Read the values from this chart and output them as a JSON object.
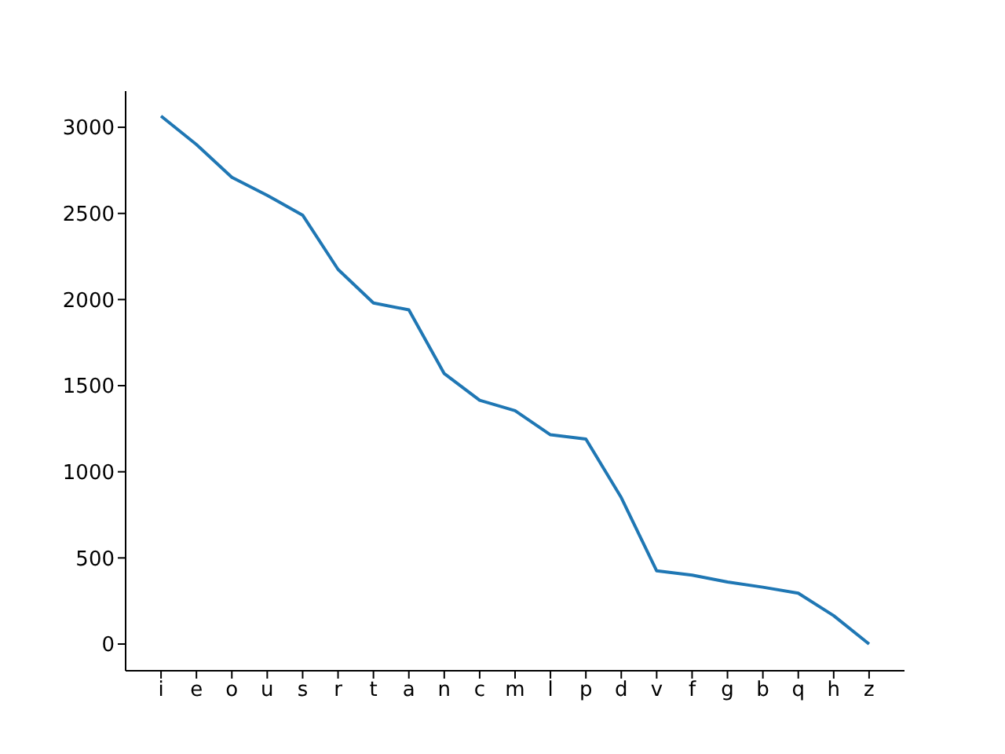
{
  "chart_data": {
    "type": "line",
    "categories": [
      "i",
      "e",
      "o",
      "u",
      "s",
      "r",
      "t",
      "a",
      "n",
      "c",
      "m",
      "l",
      "p",
      "d",
      "v",
      "f",
      "g",
      "b",
      "q",
      "h",
      "z"
    ],
    "series": [
      {
        "color": "#1f77b4",
        "values": [
          3065,
          2900,
          2710,
          2605,
          2490,
          2175,
          1980,
          1940,
          1570,
          1415,
          1355,
          1215,
          1190,
          850,
          425,
          400,
          360,
          330,
          295,
          165,
          0
        ]
      }
    ],
    "ylim": [
      -155,
      3210
    ],
    "yticks": [
      0,
      500,
      1000,
      1500,
      2000,
      2500,
      3000
    ],
    "grid": false,
    "legend": false,
    "marker": "none",
    "line_style": "solid"
  }
}
